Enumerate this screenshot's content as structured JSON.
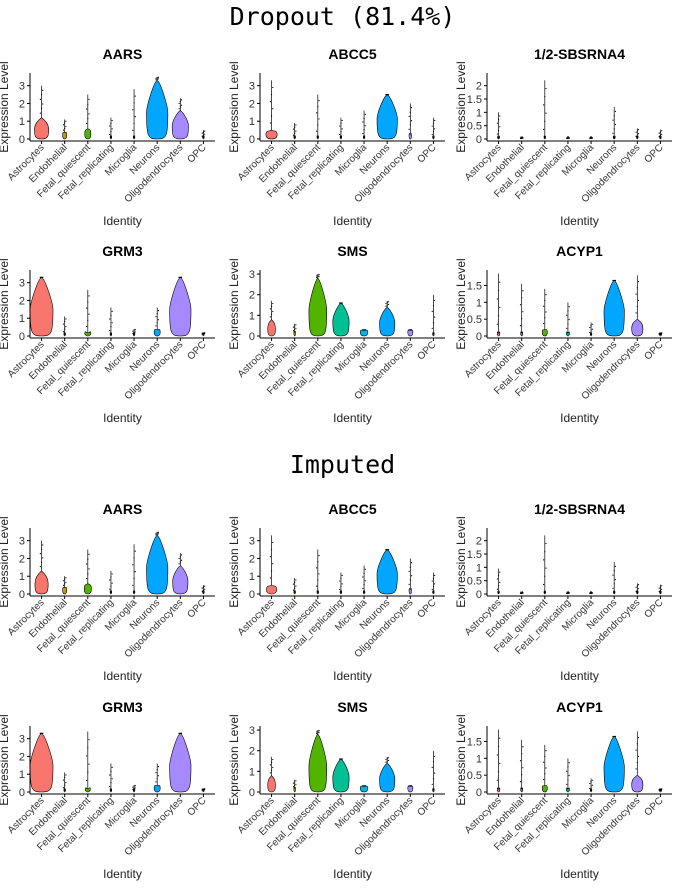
{
  "titles": {
    "top": "Dropout (81.4%)",
    "bottom": "Imputed"
  },
  "axis_labels": {
    "x": "Identity",
    "y": "Expression Level"
  },
  "colors": {
    "Astrocytes": "#F8766D",
    "Endothelial": "#C49A00",
    "Fetal_quiescent": "#53B400",
    "Fetal_replicating": "#00C094",
    "Microglia": "#00B6EB",
    "Neurons": "#00A6FF",
    "Oligodendrocytes": "#A58AFF",
    "OPC": "#FB61D7"
  },
  "chart_data": [
    {
      "section": "top",
      "type": "violin",
      "title": "AARS",
      "categories": [
        "Astrocytes",
        "Endothelial",
        "Fetal_quiescent",
        "Fetal_replicating",
        "Microglia",
        "Neurons",
        "Oligodendrocytes",
        "OPC"
      ],
      "ylim": [
        0,
        3.6
      ],
      "yticks": [
        0,
        1,
        2,
        3
      ],
      "max": [
        3.0,
        1.1,
        2.5,
        1.2,
        2.8,
        3.5,
        2.3,
        0.5
      ],
      "width": [
        0.28,
        0.08,
        0.12,
        0.03,
        0.03,
        0.42,
        0.32,
        0.02
      ],
      "body": [
        1.2,
        0.4,
        0.6,
        0.1,
        0.1,
        3.3,
        1.6,
        0.1
      ]
    },
    {
      "section": "top",
      "type": "violin",
      "title": "ABCC5",
      "categories": [
        "Astrocytes",
        "Endothelial",
        "Fetal_quiescent",
        "Fetal_replicating",
        "Microglia",
        "Neurons",
        "Oligodendrocytes",
        "OPC"
      ],
      "ylim": [
        0,
        3.6
      ],
      "yticks": [
        0,
        1,
        2,
        3
      ],
      "max": [
        3.3,
        0.9,
        2.5,
        1.2,
        1.6,
        2.5,
        2.0,
        1.2
      ],
      "width": [
        0.22,
        0.03,
        0.03,
        0.03,
        0.03,
        0.4,
        0.05,
        0.03
      ],
      "body": [
        0.5,
        0.1,
        0.1,
        0.1,
        0.1,
        2.5,
        0.3,
        0.1
      ]
    },
    {
      "section": "top",
      "type": "violin",
      "title": "1/2-SBSRNA4",
      "categories": [
        "Astrocytes",
        "Endothelial",
        "Fetal_quiescent",
        "Fetal_replicating",
        "Microglia",
        "Neurons",
        "Oligodendrocytes",
        "OPC"
      ],
      "ylim": [
        0,
        2.4
      ],
      "yticks": [
        0,
        0.5,
        1,
        1.5,
        2
      ],
      "max": [
        1.0,
        0.05,
        2.2,
        0.05,
        0.05,
        1.2,
        0.4,
        0.35
      ],
      "width": [
        0.04,
        0.02,
        0.03,
        0.02,
        0.02,
        0.04,
        0.03,
        0.03
      ],
      "body": [
        0.05,
        0.02,
        0.05,
        0.02,
        0.02,
        0.05,
        0.05,
        0.05
      ]
    },
    {
      "section": "top",
      "type": "violin",
      "title": "GRM3",
      "categories": [
        "Astrocytes",
        "Endothelial",
        "Fetal_quiescent",
        "Fetal_replicating",
        "Microglia",
        "Neurons",
        "Oligodendrocytes",
        "OPC"
      ],
      "ylim": [
        0,
        3.6
      ],
      "yticks": [
        0,
        1,
        2,
        3
      ],
      "max": [
        3.3,
        1.1,
        2.6,
        1.6,
        0.4,
        1.6,
        3.3,
        0.2
      ],
      "width": [
        0.45,
        0.03,
        0.12,
        0.03,
        0.03,
        0.12,
        0.42,
        0.02
      ],
      "body": [
        3.3,
        0.1,
        0.2,
        0.1,
        0.1,
        0.4,
        3.3,
        0.1
      ]
    },
    {
      "section": "top",
      "type": "violin",
      "title": "SMS",
      "categories": [
        "Astrocytes",
        "Endothelial",
        "Fetal_quiescent",
        "Fetal_replicating",
        "Microglia",
        "Neurons",
        "Oligodendrocytes",
        "OPC"
      ],
      "ylim": [
        0,
        3.1
      ],
      "yticks": [
        0,
        1,
        2,
        3
      ],
      "max": [
        1.7,
        0.6,
        3.0,
        1.6,
        0.3,
        1.7,
        0.3,
        2.0
      ],
      "width": [
        0.15,
        0.03,
        0.35,
        0.32,
        0.15,
        0.3,
        0.1,
        0.02
      ],
      "body": [
        0.8,
        0.2,
        2.8,
        1.6,
        0.3,
        1.4,
        0.3,
        0.1
      ]
    },
    {
      "section": "top",
      "type": "violin",
      "title": "ACYP1",
      "categories": [
        "Astrocytes",
        "Endothelial",
        "Fetal_quiescent",
        "Fetal_replicating",
        "Microglia",
        "Neurons",
        "Oligodendrocytes",
        "OPC"
      ],
      "ylim": [
        0,
        1.9
      ],
      "yticks": [
        0,
        0.5,
        1,
        1.5
      ],
      "max": [
        1.85,
        1.55,
        1.4,
        1.0,
        0.4,
        1.65,
        1.8,
        0.1
      ],
      "width": [
        0.05,
        0.04,
        0.1,
        0.06,
        0.03,
        0.4,
        0.22,
        0.05
      ],
      "body": [
        0.1,
        0.1,
        0.2,
        0.1,
        0.05,
        1.65,
        0.5,
        0.05
      ]
    },
    {
      "section": "bottom",
      "type": "violin",
      "title": "AARS",
      "categories": [
        "Astrocytes",
        "Endothelial",
        "Fetal_quiescent",
        "Fetal_replicating",
        "Microglia",
        "Neurons",
        "Oligodendrocytes",
        "OPC"
      ],
      "ylim": [
        0,
        3.6
      ],
      "yticks": [
        0,
        1,
        2,
        3
      ],
      "max": [
        3.0,
        1.0,
        2.5,
        1.3,
        2.8,
        3.5,
        2.3,
        0.5
      ],
      "width": [
        0.26,
        0.08,
        0.14,
        0.03,
        0.03,
        0.42,
        0.3,
        0.02
      ],
      "body": [
        1.3,
        0.4,
        0.6,
        0.1,
        0.1,
        3.3,
        1.6,
        0.1
      ]
    },
    {
      "section": "bottom",
      "type": "violin",
      "title": "ABCC5",
      "categories": [
        "Astrocytes",
        "Endothelial",
        "Fetal_quiescent",
        "Fetal_replicating",
        "Microglia",
        "Neurons",
        "Oligodendrocytes",
        "OPC"
      ],
      "ylim": [
        0,
        3.6
      ],
      "yticks": [
        0,
        1,
        2,
        3
      ],
      "max": [
        3.3,
        0.9,
        2.5,
        1.2,
        1.6,
        2.5,
        2.0,
        1.2
      ],
      "width": [
        0.2,
        0.03,
        0.03,
        0.03,
        0.03,
        0.4,
        0.05,
        0.03
      ],
      "body": [
        0.5,
        0.1,
        0.1,
        0.1,
        0.1,
        2.5,
        0.3,
        0.1
      ]
    },
    {
      "section": "bottom",
      "type": "violin",
      "title": "1/2-SBSRNA4",
      "categories": [
        "Astrocytes",
        "Endothelial",
        "Fetal_quiescent",
        "Fetal_replicating",
        "Microglia",
        "Neurons",
        "Oligodendrocytes",
        "OPC"
      ],
      "ylim": [
        0,
        2.4
      ],
      "yticks": [
        0,
        0.5,
        1,
        1.5,
        2
      ],
      "max": [
        0.95,
        0.05,
        2.2,
        0.05,
        0.05,
        1.2,
        0.4,
        0.35
      ],
      "width": [
        0.03,
        0.02,
        0.02,
        0.02,
        0.02,
        0.03,
        0.03,
        0.03
      ],
      "body": [
        0.05,
        0.02,
        0.05,
        0.02,
        0.02,
        0.05,
        0.05,
        0.05
      ]
    },
    {
      "section": "bottom",
      "type": "violin",
      "title": "GRM3",
      "categories": [
        "Astrocytes",
        "Endothelial",
        "Fetal_quiescent",
        "Fetal_replicating",
        "Microglia",
        "Neurons",
        "Oligodendrocytes",
        "OPC"
      ],
      "ylim": [
        0,
        3.6
      ],
      "yticks": [
        0,
        1,
        2,
        3
      ],
      "max": [
        3.3,
        1.1,
        3.4,
        1.6,
        0.4,
        1.6,
        3.3,
        0.2
      ],
      "width": [
        0.45,
        0.03,
        0.1,
        0.03,
        0.03,
        0.12,
        0.42,
        0.02
      ],
      "body": [
        3.3,
        0.1,
        0.2,
        0.1,
        0.1,
        0.4,
        3.3,
        0.1
      ]
    },
    {
      "section": "bottom",
      "type": "violin",
      "title": "SMS",
      "categories": [
        "Astrocytes",
        "Endothelial",
        "Fetal_quiescent",
        "Fetal_replicating",
        "Microglia",
        "Neurons",
        "Oligodendrocytes",
        "OPC"
      ],
      "ylim": [
        0,
        3.1
      ],
      "yticks": [
        0,
        1,
        2,
        3
      ],
      "max": [
        1.7,
        0.6,
        3.0,
        1.6,
        0.3,
        1.7,
        0.3,
        2.0
      ],
      "width": [
        0.15,
        0.03,
        0.35,
        0.32,
        0.15,
        0.3,
        0.1,
        0.02
      ],
      "body": [
        0.8,
        0.2,
        2.8,
        1.6,
        0.3,
        1.4,
        0.3,
        0.1
      ]
    },
    {
      "section": "bottom",
      "type": "violin",
      "title": "ACYP1",
      "categories": [
        "Astrocytes",
        "Endothelial",
        "Fetal_quiescent",
        "Fetal_replicating",
        "Microglia",
        "Neurons",
        "Oligodendrocytes",
        "OPC"
      ],
      "ylim": [
        0,
        1.9
      ],
      "yticks": [
        0,
        0.5,
        1,
        1.5
      ],
      "max": [
        1.85,
        1.55,
        1.4,
        1.0,
        0.4,
        1.65,
        1.8,
        0.1
      ],
      "width": [
        0.05,
        0.04,
        0.1,
        0.06,
        0.03,
        0.4,
        0.22,
        0.05
      ],
      "body": [
        0.1,
        0.1,
        0.2,
        0.1,
        0.05,
        1.65,
        0.5,
        0.05
      ]
    }
  ]
}
